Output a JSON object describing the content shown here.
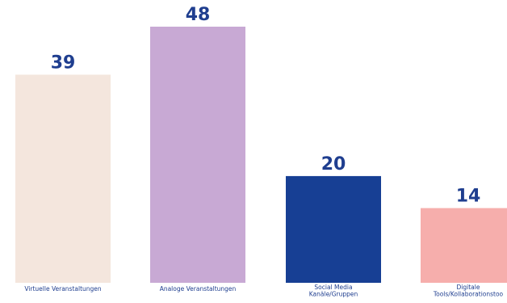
{
  "chart_data": {
    "type": "bar",
    "categories": [
      [
        "Virtuelle Veranstaltungen"
      ],
      [
        "Analoge Veranstaltungen"
      ],
      [
        "Social Media",
        "Kanäle/Gruppen"
      ],
      [
        "Digitale",
        "Tools/Kollaborationstoo"
      ]
    ],
    "values": [
      39,
      48,
      20,
      14
    ],
    "value_labels": [
      "39",
      "48",
      "20",
      "14"
    ],
    "colors": [
      "#f4e6dd",
      "#c8a9d4",
      "#173f94",
      "#f6aeac"
    ],
    "label_color": "#1f3e8f",
    "ylim": [
      0,
      48
    ],
    "grid": false,
    "legend": "none"
  }
}
